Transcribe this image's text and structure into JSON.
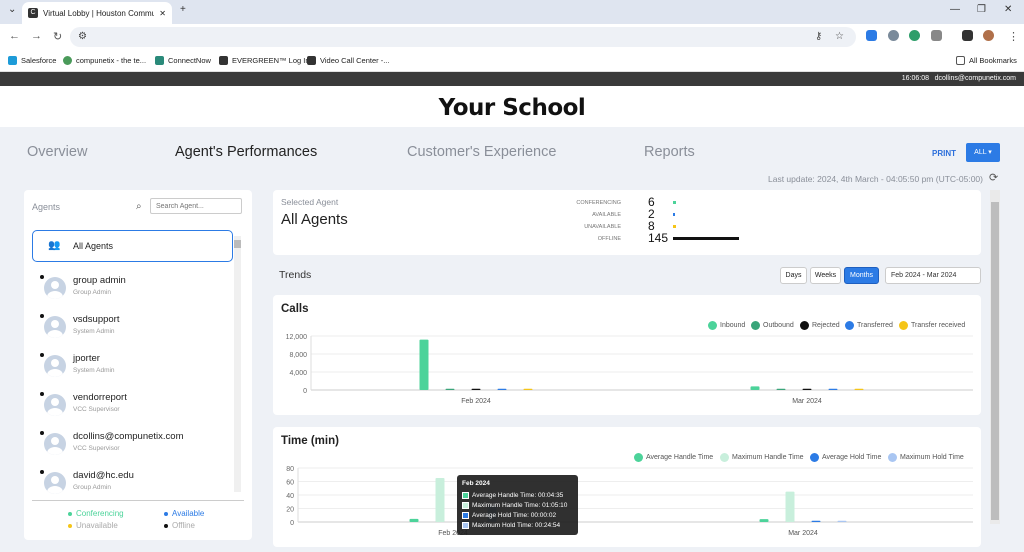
{
  "browser": {
    "tab_title": "Virtual Lobby | Houston Commu",
    "bookmarks": [
      "Salesforce",
      "compunetix - the te...",
      "ConnectNow",
      "EVERGREEN™ Log In",
      "Video Call Center -...",
      "All Bookmarks"
    ]
  },
  "appbar": {
    "time": "16:06:08",
    "user": "dcollins@compunetix.com"
  },
  "school": {
    "title": "Your School"
  },
  "nav": {
    "tabs": [
      "Overview",
      "Agent's Performances",
      "Customer's Experience",
      "Reports"
    ],
    "print": "PRINT",
    "all": "ALL ▾"
  },
  "last_update": "Last update: 2024, 4th March - 04:05:50 pm (UTC-05:00)",
  "agents_panel": {
    "header": "Agents",
    "search_placeholder": "Search Agent...",
    "all_agents": "All Agents",
    "items": [
      {
        "name": "group admin",
        "role": "Group Admin"
      },
      {
        "name": "vsdsupport",
        "role": "System Admin"
      },
      {
        "name": "jporter",
        "role": "System Admin"
      },
      {
        "name": "vendorreport",
        "role": "VCC Supervisor"
      },
      {
        "name": "dcollins@compunetix.com",
        "role": "VCC Supervisor"
      },
      {
        "name": "david@hc.edu",
        "role": "Group Admin"
      }
    ],
    "legend": [
      {
        "label": "Conferencing",
        "color": "#4cd39a"
      },
      {
        "label": "Available",
        "color": "#2c7be5"
      },
      {
        "label": "Unavailable",
        "color": "#f5c518"
      },
      {
        "label": "Offline",
        "color": "#111111"
      }
    ]
  },
  "selected": {
    "label": "Selected Agent",
    "value": "All Agents",
    "stats": [
      {
        "label": "CONFERENCING",
        "value": "6",
        "color": "#4cd39a",
        "share": 0.04
      },
      {
        "label": "AVAILABLE",
        "value": "2",
        "color": "#2c7be5",
        "share": 0.01
      },
      {
        "label": "UNAVAILABLE",
        "value": "8",
        "color": "#f5c518",
        "share": 0.05
      },
      {
        "label": "OFFLINE",
        "value": "145",
        "color": "#111111",
        "share": 1.0
      }
    ]
  },
  "trends": {
    "title": "Trends",
    "periods": [
      "Days",
      "Weeks",
      "Months"
    ],
    "active_period": "Months",
    "range": "Feb 2024 - Mar 2024"
  },
  "calls_card": {
    "title": "Calls"
  },
  "time_card": {
    "title": "Time (min)"
  },
  "tooltip": {
    "title": "Feb 2024",
    "rows": [
      {
        "label": "Average Handle Time: 00:04:35",
        "color": "#4cd39a"
      },
      {
        "label": "Maximum Handle Time: 01:05:10",
        "color": "#c8efdc"
      },
      {
        "label": "Average Hold Time: 00:00:02",
        "color": "#2c7be5"
      },
      {
        "label": "Maximum Hold Time: 00:24:54",
        "color": "#a9c6f2"
      }
    ]
  },
  "chart_data": [
    {
      "type": "bar",
      "title": "Calls",
      "categories": [
        "Feb 2024",
        "Mar 2024"
      ],
      "ylim": [
        0,
        12000
      ],
      "yticks": [
        "12,000",
        "8,000",
        "4,000",
        "0"
      ],
      "ytick_values": [
        12000,
        8000,
        4000,
        0
      ],
      "legend_placement": "top-right",
      "series": [
        {
          "name": "Inbound",
          "color": "#4cd39a",
          "values": [
            11200,
            800
          ]
        },
        {
          "name": "Outbound",
          "color": "#3aa57a",
          "values": [
            50,
            20
          ]
        },
        {
          "name": "Rejected",
          "color": "#111111",
          "values": [
            20,
            10
          ]
        },
        {
          "name": "Transferred",
          "color": "#2c7be5",
          "values": [
            20,
            10
          ]
        },
        {
          "name": "Transfer received",
          "color": "#f5c518",
          "values": [
            20,
            10
          ]
        }
      ]
    },
    {
      "type": "bar",
      "title": "Time (min)",
      "categories": [
        "Feb 2024",
        "Mar 2024"
      ],
      "ylim": [
        0,
        80
      ],
      "yticks": [
        "80",
        "60",
        "40",
        "20",
        "0"
      ],
      "ytick_values": [
        80,
        60,
        40,
        20,
        0
      ],
      "legend_placement": "top-right",
      "series": [
        {
          "name": "Average Handle Time",
          "color": "#4cd39a",
          "values": [
            4.58,
            4.2
          ]
        },
        {
          "name": "Maximum Handle Time",
          "color": "#c8efdc",
          "values": [
            65.17,
            45
          ]
        },
        {
          "name": "Average Hold Time",
          "color": "#2c7be5",
          "values": [
            0.03,
            0.02
          ]
        },
        {
          "name": "Maximum Hold Time",
          "color": "#a9c6f2",
          "values": [
            24.9,
            1.5
          ]
        }
      ]
    }
  ]
}
